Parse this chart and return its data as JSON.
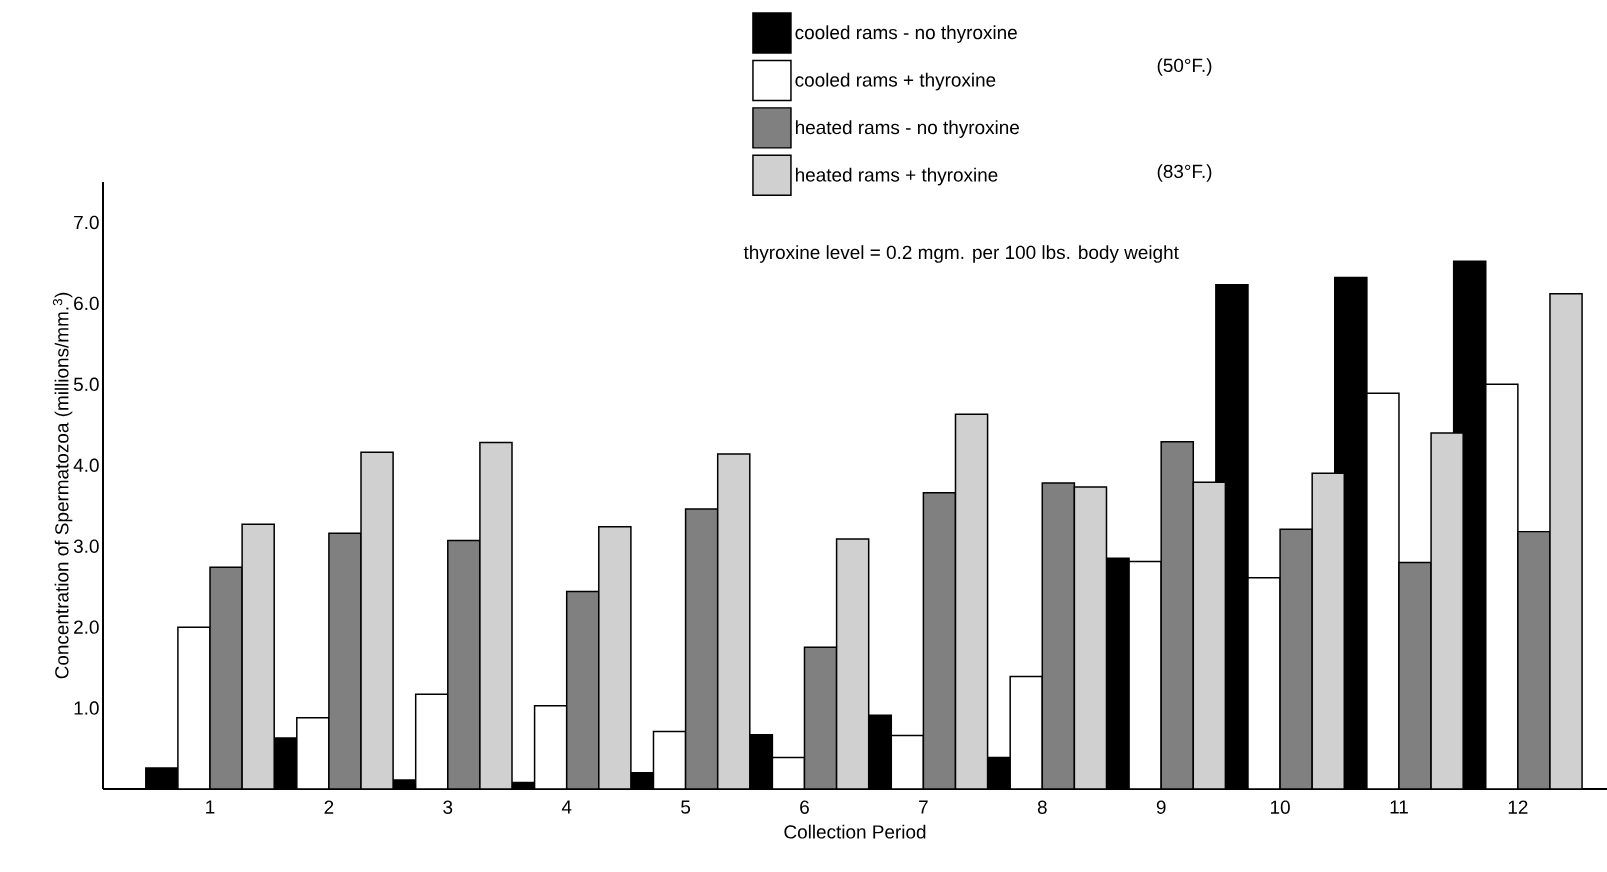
{
  "chart_data": {
    "type": "bar",
    "xlabel": "Collection Period",
    "ylabel": "Concentration of Spermatozoa (millions/mm.$^{3}$)",
    "categories": [
      "1",
      "2",
      "3",
      "4",
      "5",
      "6",
      "7",
      "8",
      "9",
      "10",
      "11",
      "12"
    ],
    "series": [
      {
        "name": "cooled rams - no thyroxine",
        "color": "#000000",
        "values": [
          0.26,
          0.63,
          0.11,
          0.08,
          0.2,
          0.67,
          0.91,
          0.39,
          2.85,
          6.23,
          6.32,
          6.52
        ]
      },
      {
        "name": "cooled rams + thyroxine",
        "color": "#ffffff",
        "values": [
          2.0,
          0.88,
          1.17,
          1.03,
          0.71,
          0.39,
          0.66,
          1.39,
          2.81,
          2.61,
          4.89,
          5.0
        ]
      },
      {
        "name": "heated rams - no thyroxine",
        "color": "#808080",
        "values": [
          2.74,
          3.16,
          3.07,
          2.44,
          3.46,
          1.75,
          3.66,
          3.78,
          4.29,
          3.21,
          2.8,
          3.18
        ]
      },
      {
        "name": "heated rams + thyroxine",
        "color": "#d0d0d0",
        "values": [
          3.27,
          4.16,
          4.28,
          3.24,
          4.14,
          3.09,
          4.63,
          3.73,
          3.79,
          3.9,
          4.4,
          6.12
        ]
      }
    ],
    "ylim": [
      0,
      7.5
    ],
    "yticks": [
      {
        "value": 1,
        "label": "1.0"
      },
      {
        "value": 2,
        "label": "2.0"
      },
      {
        "value": 3,
        "label": "3.0"
      },
      {
        "value": 4,
        "label": "4.0"
      },
      {
        "value": 5,
        "label": "5.0"
      },
      {
        "value": 6,
        "label": "6.0"
      },
      {
        "value": 7,
        "label": "7.0"
      }
    ],
    "legend": "top",
    "annotations": [
      "(50°F.)",
      "(83°F.)",
      "thyroxine level = 0.2 mgm. per 100 lbs. body weight"
    ]
  }
}
